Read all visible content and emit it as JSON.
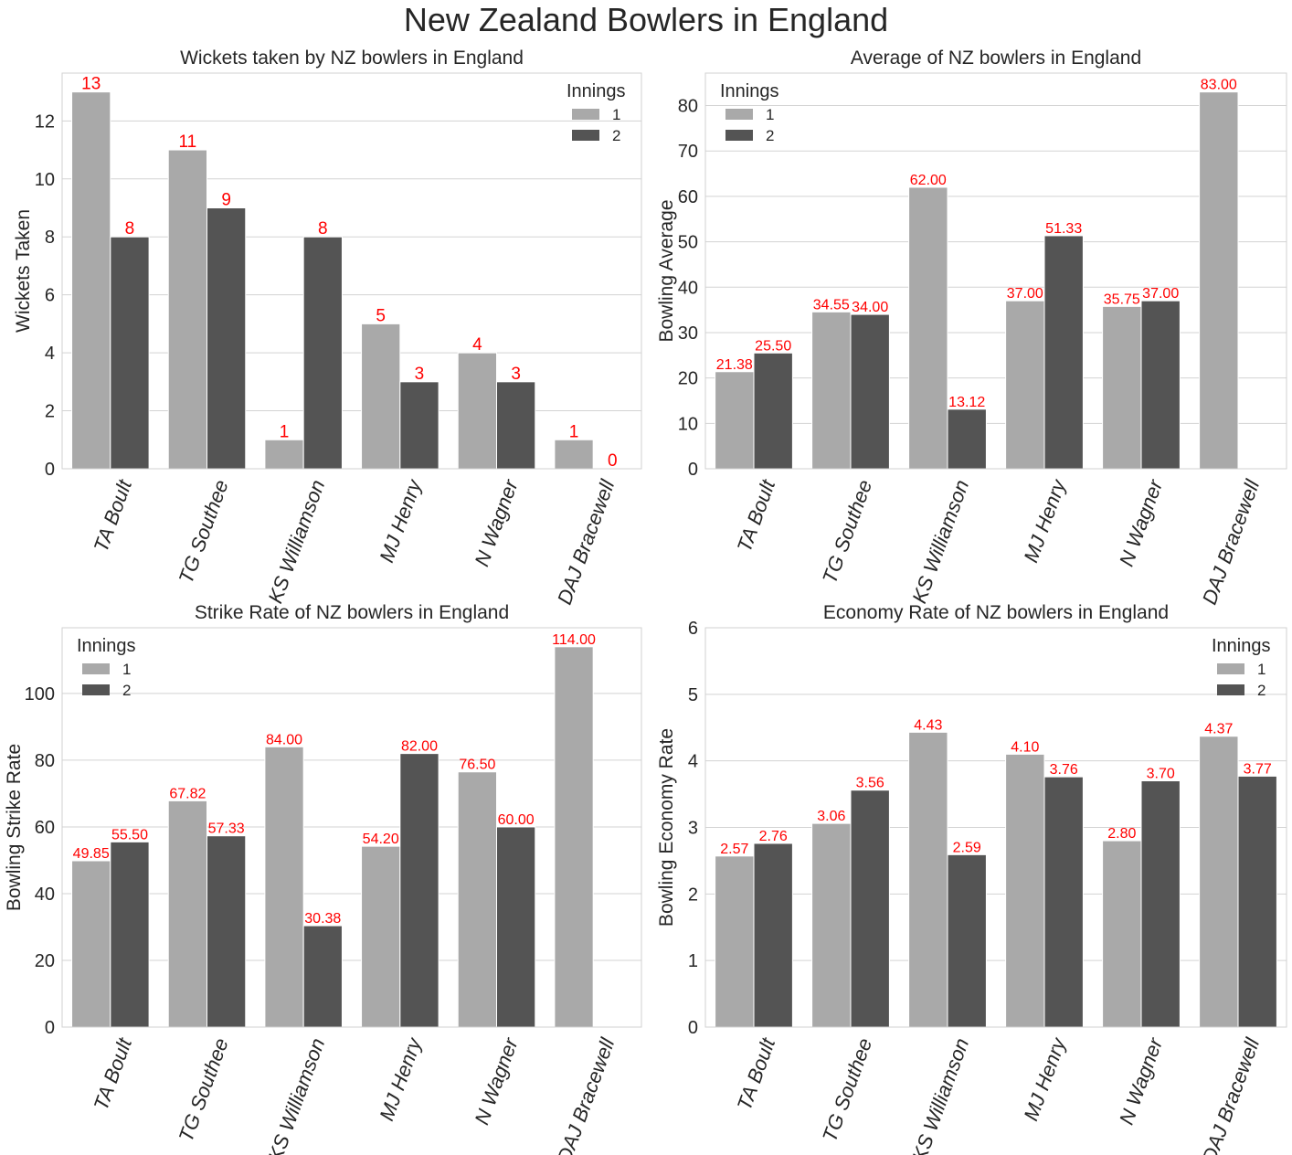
{
  "figure_title": "New Zealand Bowlers in England",
  "style": {
    "bar_colors": [
      "#a9a9a9",
      "#545454"
    ],
    "label_color": "#ff0000",
    "grid_color": "#d3d3d3",
    "text_color": "#262626"
  },
  "chart_data": [
    {
      "type": "bar",
      "title": "Wickets taken by NZ bowlers in England",
      "xlabel": "",
      "ylabel": "Wickets Taken",
      "ylim": [
        0,
        13.65
      ],
      "yticks": [
        0,
        2,
        4,
        6,
        8,
        10,
        12
      ],
      "tick_labels": [
        "0",
        "2",
        "4",
        "6",
        "8",
        "10",
        "12"
      ],
      "categories": [
        "TA Boult",
        "TG Southee",
        "KS Williamson",
        "MJ Henry",
        "N Wagner",
        "DAJ Bracewell"
      ],
      "legend_title": "Innings",
      "legend_position": "top-right",
      "grid": true,
      "series": [
        {
          "name": "1",
          "values": [
            13,
            11,
            1,
            5,
            4,
            1
          ],
          "labels": [
            "13",
            "11",
            "1",
            "5",
            "4",
            "1"
          ]
        },
        {
          "name": "2",
          "values": [
            8,
            9,
            8,
            3,
            3,
            0
          ],
          "labels": [
            "8",
            "9",
            "8",
            "3",
            "3",
            "0"
          ]
        }
      ]
    },
    {
      "type": "bar",
      "title": "Average of NZ bowlers in England",
      "xlabel": "",
      "ylabel": "Bowling Average",
      "ylim": [
        0,
        87.15
      ],
      "yticks": [
        0,
        10,
        20,
        30,
        40,
        50,
        60,
        70,
        80
      ],
      "tick_labels": [
        "0",
        "10",
        "20",
        "30",
        "40",
        "50",
        "60",
        "70",
        "80"
      ],
      "categories": [
        "TA Boult",
        "TG Southee",
        "KS Williamson",
        "MJ Henry",
        "N Wagner",
        "DAJ Bracewell"
      ],
      "legend_title": "Innings",
      "legend_position": "top-left",
      "grid": true,
      "series": [
        {
          "name": "1",
          "values": [
            21.38,
            34.55,
            62.0,
            37.0,
            35.75,
            83.0
          ],
          "labels": [
            "21.38",
            "34.55",
            "62.00",
            "37.00",
            "35.75",
            "83.00"
          ]
        },
        {
          "name": "2",
          "values": [
            25.5,
            34.0,
            13.12,
            51.33,
            37.0,
            null
          ],
          "labels": [
            "25.50",
            "34.00",
            "13.12",
            "51.33",
            "37.00",
            ""
          ]
        }
      ]
    },
    {
      "type": "bar",
      "title": "Strike Rate of NZ bowlers in England",
      "xlabel": "",
      "ylabel": "Bowling Strike Rate",
      "ylim": [
        0,
        119.7
      ],
      "yticks": [
        0,
        20,
        40,
        60,
        80,
        100
      ],
      "tick_labels": [
        "0",
        "20",
        "40",
        "60",
        "80",
        "100"
      ],
      "categories": [
        "TA Boult",
        "TG Southee",
        "KS Williamson",
        "MJ Henry",
        "N Wagner",
        "DAJ Bracewell"
      ],
      "legend_title": "Innings",
      "legend_position": "top-left",
      "grid": true,
      "series": [
        {
          "name": "1",
          "values": [
            49.85,
            67.82,
            84.0,
            54.2,
            76.5,
            114.0
          ],
          "labels": [
            "49.85",
            "67.82",
            "84.00",
            "54.20",
            "76.50",
            "114.00"
          ]
        },
        {
          "name": "2",
          "values": [
            55.5,
            57.33,
            30.38,
            82.0,
            60.0,
            null
          ],
          "labels": [
            "55.50",
            "57.33",
            "30.38",
            "82.00",
            "60.00",
            ""
          ]
        }
      ]
    },
    {
      "type": "bar",
      "title": "Economy Rate of NZ bowlers in England",
      "xlabel": "",
      "ylabel": "Bowling Economy Rate",
      "ylim": [
        0,
        6
      ],
      "yticks": [
        0,
        1,
        2,
        3,
        4,
        5,
        6
      ],
      "tick_labels": [
        "0",
        "1",
        "2",
        "3",
        "4",
        "5",
        "6"
      ],
      "categories": [
        "TA Boult",
        "TG Southee",
        "KS Williamson",
        "MJ Henry",
        "N Wagner",
        "DAJ Bracewell"
      ],
      "legend_title": "Innings",
      "legend_position": "top-right",
      "grid": true,
      "series": [
        {
          "name": "1",
          "values": [
            2.57,
            3.06,
            4.43,
            4.1,
            2.8,
            4.37
          ],
          "labels": [
            "2.57",
            "3.06",
            "4.43",
            "4.10",
            "2.80",
            "4.37"
          ]
        },
        {
          "name": "2",
          "values": [
            2.76,
            3.56,
            2.59,
            3.76,
            3.7,
            3.77
          ],
          "labels": [
            "2.76",
            "3.56",
            "2.59",
            "3.76",
            "3.70",
            "3.77"
          ]
        }
      ]
    }
  ]
}
